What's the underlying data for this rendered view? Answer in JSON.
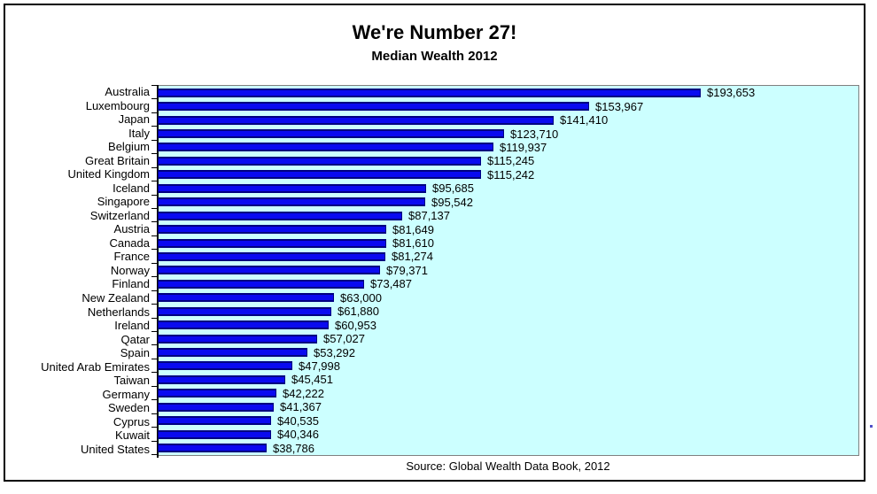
{
  "header": {
    "title": "We're Number 27!",
    "subtitle": "Median Wealth 2012"
  },
  "footer": {
    "source": "Source: Global Wealth Data Book, 2012"
  },
  "colors": {
    "plot_background": "#ccffff",
    "plot_border": "#808080",
    "bar_fill": "#0a0af0",
    "bar_border": "#000080",
    "axis": "#000000",
    "text": "#000000",
    "frame_border": "#000000",
    "page_background": "#ffffff"
  },
  "chart_data": {
    "type": "bar",
    "orientation": "horizontal",
    "title": "We're Number 27!",
    "subtitle": "Median Wealth 2012",
    "xlabel": "",
    "ylabel": "",
    "xlim": [
      0,
      250000
    ],
    "grid": false,
    "legend_position": "none",
    "source": "Source: Global Wealth Data Book, 2012",
    "categories": [
      "Australia",
      "Luxembourg",
      "Japan",
      "Italy",
      "Belgium",
      "Great Britain",
      "United Kingdom",
      "Iceland",
      "Singapore",
      "Switzerland",
      "Austria",
      "Canada",
      "France",
      "Norway",
      "Finland",
      "New Zealand",
      "Netherlands",
      "Ireland",
      "Qatar",
      "Spain",
      "United Arab Emirates",
      "Taiwan",
      "Germany",
      "Sweden",
      "Cyprus",
      "Kuwait",
      "United States"
    ],
    "values": [
      193653,
      153967,
      141410,
      123710,
      119937,
      115245,
      115242,
      95685,
      95542,
      87137,
      81649,
      81610,
      81274,
      79371,
      73487,
      63000,
      61880,
      60953,
      57027,
      53292,
      47998,
      45451,
      42222,
      41367,
      40535,
      40346,
      38786
    ],
    "value_labels": [
      "$193,653",
      "$153,967",
      "$141,410",
      "$123,710",
      "$119,937",
      "$115,245",
      "$115,242",
      "$95,685",
      "$95,542",
      "$87,137",
      "$81,649",
      "$81,610",
      "$81,274",
      "$79,371",
      "$73,487",
      "$63,000",
      "$61,880",
      "$60,953",
      "$57,027",
      "$53,292",
      "$47,998",
      "$45,451",
      "$42,222",
      "$41,367",
      "$40,535",
      "$40,346",
      "$38,786"
    ]
  }
}
